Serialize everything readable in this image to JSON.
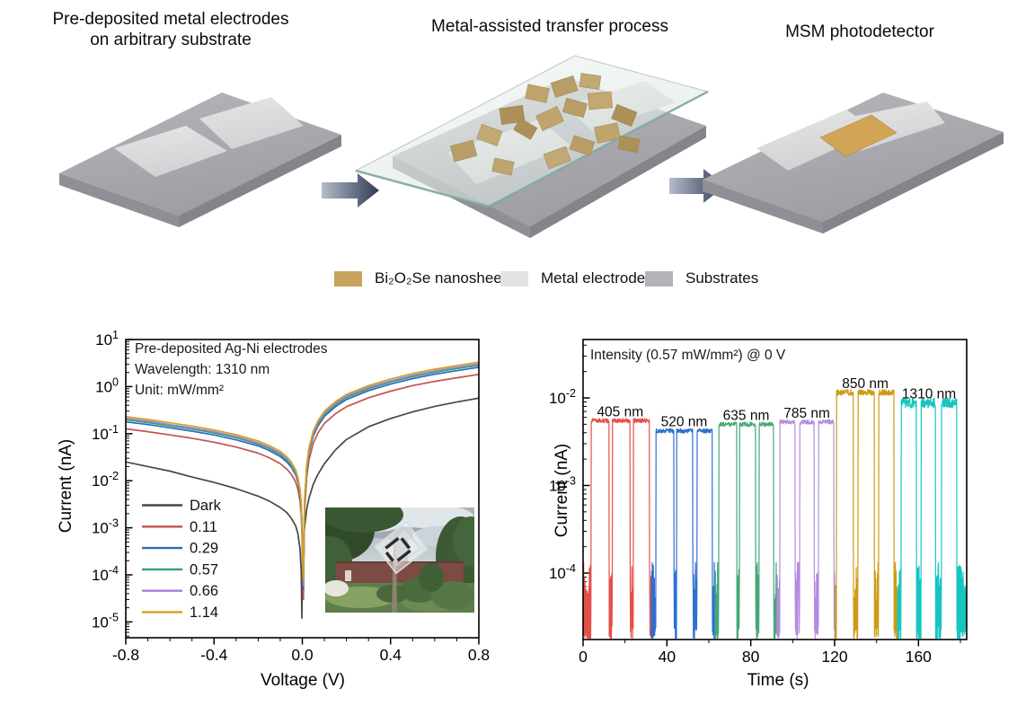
{
  "panels": [
    {
      "title": "Pre-deposited metal electrodes\non arbitrary substrate"
    },
    {
      "title": "Metal-assisted transfer process"
    },
    {
      "title": "MSM photodetector"
    }
  ],
  "materials_legend": {
    "items": [
      {
        "label": "Bi₂O₂Se nanosheets",
        "color": "#c8a35e"
      },
      {
        "label": "Metal electrodes",
        "color": "#e3e3e4"
      },
      {
        "label": "Substrates",
        "color": "#b2b2b7"
      }
    ]
  },
  "chart_data": [
    {
      "type": "line",
      "title": "",
      "xlabel": "Voltage (V)",
      "ylabel": "Current (nA)",
      "xlim": [
        -0.8,
        0.8
      ],
      "x_ticks": [
        -0.8,
        -0.4,
        0.0,
        0.4,
        0.8
      ],
      "y_ticks_log": [
        1,
        0,
        -1,
        -2,
        -3,
        -4,
        -5
      ],
      "ylim_log": [
        -5.34,
        1
      ],
      "grid": false,
      "yscale": "log",
      "legend_position": "inside lower-left",
      "annotation": "Pre-deposited Ag-Ni electrodes\nWavelength: 1310 nm\nUnit: mW/mm²",
      "series": [
        {
          "name": "Dark",
          "color": "#474747",
          "points": [
            [
              -0.8,
              0.025
            ],
            [
              -0.7,
              0.02
            ],
            [
              -0.6,
              0.016
            ],
            [
              -0.5,
              0.012
            ],
            [
              -0.4,
              0.0092
            ],
            [
              -0.3,
              0.0068
            ],
            [
              -0.2,
              0.0047
            ],
            [
              -0.15,
              0.0037
            ],
            [
              -0.1,
              0.0027
            ],
            [
              -0.07,
              0.0021
            ],
            [
              -0.05,
              0.0016
            ],
            [
              -0.03,
              0.0011
            ],
            [
              -0.02,
              0.00075
            ],
            [
              -0.01,
              0.00035
            ],
            [
              -0.005,
              0.00012
            ],
            [
              -0.002,
              1.2e-05
            ],
            [
              0,
              8e-05
            ],
            [
              0.002,
              0.00028
            ],
            [
              0.005,
              0.00055
            ],
            [
              0.01,
              0.001
            ],
            [
              0.02,
              0.0025
            ],
            [
              0.03,
              0.0042
            ],
            [
              0.05,
              0.0085
            ],
            [
              0.07,
              0.0135
            ],
            [
              0.1,
              0.023
            ],
            [
              0.15,
              0.045
            ],
            [
              0.2,
              0.075
            ],
            [
              0.3,
              0.14
            ],
            [
              0.4,
              0.21
            ],
            [
              0.5,
              0.29
            ],
            [
              0.6,
              0.38
            ],
            [
              0.7,
              0.47
            ],
            [
              0.8,
              0.57
            ]
          ]
        },
        {
          "name": "0.11",
          "color": "#c5534f",
          "points": [
            [
              -0.8,
              0.127
            ],
            [
              -0.7,
              0.11
            ],
            [
              -0.6,
              0.094
            ],
            [
              -0.5,
              0.08
            ],
            [
              -0.4,
              0.066
            ],
            [
              -0.3,
              0.052
            ],
            [
              -0.2,
              0.0385
            ],
            [
              -0.15,
              0.0308
            ],
            [
              -0.1,
              0.0231
            ],
            [
              -0.07,
              0.0176
            ],
            [
              -0.05,
              0.0138
            ],
            [
              -0.03,
              0.0094
            ],
            [
              -0.02,
              0.0066
            ],
            [
              -0.01,
              0.0036
            ],
            [
              -0.005,
              0.0019
            ],
            [
              -0.002,
              0.0008
            ],
            [
              0,
              0.00033
            ],
            [
              0.002,
              0.0001
            ],
            [
              0.005,
              3e-05
            ],
            [
              0.01,
              0.0022
            ],
            [
              0.02,
              0.012
            ],
            [
              0.03,
              0.0275
            ],
            [
              0.05,
              0.063
            ],
            [
              0.07,
              0.102
            ],
            [
              0.1,
              0.165
            ],
            [
              0.15,
              0.264
            ],
            [
              0.2,
              0.374
            ],
            [
              0.3,
              0.58
            ],
            [
              0.4,
              0.8
            ],
            [
              0.5,
              1.05
            ],
            [
              0.6,
              1.29
            ],
            [
              0.7,
              1.54
            ],
            [
              0.8,
              1.82
            ]
          ]
        },
        {
          "name": "0.29",
          "color": "#2b6cb8",
          "points": [
            [
              -0.8,
              0.179
            ],
            [
              -0.7,
              0.156
            ],
            [
              -0.6,
              0.133
            ],
            [
              -0.5,
              0.113
            ],
            [
              -0.4,
              0.094
            ],
            [
              -0.3,
              0.074
            ],
            [
              -0.2,
              0.055
            ],
            [
              -0.15,
              0.0437
            ],
            [
              -0.1,
              0.0328
            ],
            [
              -0.07,
              0.025
            ],
            [
              -0.05,
              0.0195
            ],
            [
              -0.03,
              0.0133
            ],
            [
              -0.02,
              0.0094
            ],
            [
              -0.01,
              0.0051
            ],
            [
              -0.005,
              0.0027
            ],
            [
              -0.002,
              0.0012
            ],
            [
              0,
              0.00047
            ],
            [
              0.002,
              0.00015
            ],
            [
              0.005,
              5e-05
            ],
            [
              0.01,
              0.0031
            ],
            [
              0.02,
              0.017
            ],
            [
              0.03,
              0.039
            ],
            [
              0.05,
              0.09
            ],
            [
              0.07,
              0.144
            ],
            [
              0.1,
              0.234
            ],
            [
              0.15,
              0.374
            ],
            [
              0.2,
              0.53
            ],
            [
              0.3,
              0.82
            ],
            [
              0.4,
              1.13
            ],
            [
              0.5,
              1.48
            ],
            [
              0.6,
              1.83
            ],
            [
              0.7,
              2.18
            ],
            [
              0.8,
              2.57
            ]
          ]
        },
        {
          "name": "0.57",
          "color": "#2da07a",
          "points": [
            [
              -0.8,
              0.198
            ],
            [
              -0.7,
              0.172
            ],
            [
              -0.6,
              0.146
            ],
            [
              -0.5,
              0.125
            ],
            [
              -0.4,
              0.103
            ],
            [
              -0.3,
              0.082
            ],
            [
              -0.2,
              0.06
            ],
            [
              -0.15,
              0.048
            ],
            [
              -0.1,
              0.036
            ],
            [
              -0.07,
              0.0275
            ],
            [
              -0.05,
              0.0215
            ],
            [
              -0.03,
              0.0146
            ],
            [
              -0.02,
              0.0103
            ],
            [
              -0.01,
              0.0056
            ],
            [
              -0.005,
              0.003
            ],
            [
              -0.002,
              0.0013
            ],
            [
              0,
              0.0005
            ],
            [
              0.002,
              0.00016
            ],
            [
              0.005,
              6e-05
            ],
            [
              0.01,
              0.0034
            ],
            [
              0.02,
              0.019
            ],
            [
              0.03,
              0.043
            ],
            [
              0.05,
              0.099
            ],
            [
              0.07,
              0.159
            ],
            [
              0.1,
              0.258
            ],
            [
              0.15,
              0.41
            ],
            [
              0.2,
              0.585
            ],
            [
              0.3,
              0.9
            ],
            [
              0.4,
              1.25
            ],
            [
              0.5,
              1.63
            ],
            [
              0.6,
              2.02
            ],
            [
              0.7,
              2.41
            ],
            [
              0.8,
              2.84
            ]
          ]
        },
        {
          "name": "0.66",
          "color": "#a781d4",
          "points": [
            [
              -0.8,
              0.212
            ],
            [
              -0.7,
              0.184
            ],
            [
              -0.6,
              0.156
            ],
            [
              -0.5,
              0.133
            ],
            [
              -0.4,
              0.11
            ],
            [
              -0.3,
              0.087
            ],
            [
              -0.2,
              0.064
            ],
            [
              -0.15,
              0.0515
            ],
            [
              -0.1,
              0.0386
            ],
            [
              -0.07,
              0.0294
            ],
            [
              -0.05,
              0.023
            ],
            [
              -0.03,
              0.0156
            ],
            [
              -0.02,
              0.011
            ],
            [
              -0.01,
              0.006
            ],
            [
              -0.005,
              0.0032
            ],
            [
              -0.002,
              0.0014
            ],
            [
              0,
              0.00055
            ],
            [
              0.002,
              0.00017
            ],
            [
              0.005,
              6e-05
            ],
            [
              0.01,
              0.0037
            ],
            [
              0.02,
              0.02
            ],
            [
              0.03,
              0.046
            ],
            [
              0.05,
              0.106
            ],
            [
              0.07,
              0.17
            ],
            [
              0.1,
              0.276
            ],
            [
              0.15,
              0.44
            ],
            [
              0.2,
              0.63
            ],
            [
              0.3,
              0.97
            ],
            [
              0.4,
              1.33
            ],
            [
              0.5,
              1.75
            ],
            [
              0.6,
              2.16
            ],
            [
              0.7,
              2.58
            ],
            [
              0.8,
              3.04
            ]
          ]
        },
        {
          "name": "1.14",
          "color": "#d2a321",
          "points": [
            [
              -0.8,
              0.23
            ],
            [
              -0.7,
              0.2
            ],
            [
              -0.6,
              0.17
            ],
            [
              -0.5,
              0.145
            ],
            [
              -0.4,
              0.12
            ],
            [
              -0.3,
              0.095
            ],
            [
              -0.2,
              0.07
            ],
            [
              -0.15,
              0.056
            ],
            [
              -0.1,
              0.042
            ],
            [
              -0.07,
              0.032
            ],
            [
              -0.05,
              0.025
            ],
            [
              -0.03,
              0.017
            ],
            [
              -0.02,
              0.012
            ],
            [
              -0.01,
              0.0065
            ],
            [
              -0.005,
              0.0035
            ],
            [
              -0.002,
              0.0015
            ],
            [
              0,
              0.0006
            ],
            [
              0.002,
              0.00019
            ],
            [
              0.005,
              8e-05
            ],
            [
              0.01,
              0.004
            ],
            [
              0.02,
              0.022
            ],
            [
              0.03,
              0.05
            ],
            [
              0.05,
              0.115
            ],
            [
              0.07,
              0.185
            ],
            [
              0.1,
              0.3
            ],
            [
              0.15,
              0.48
            ],
            [
              0.2,
              0.68
            ],
            [
              0.3,
              1.05
            ],
            [
              0.4,
              1.45
            ],
            [
              0.5,
              1.9
            ],
            [
              0.6,
              2.35
            ],
            [
              0.7,
              2.8
            ],
            [
              0.8,
              3.3
            ]
          ]
        }
      ]
    },
    {
      "type": "line",
      "title": "",
      "xlabel": "Time (s)",
      "ylabel": "Current (nA)",
      "xlim": [
        0,
        183
      ],
      "x_ticks": [
        0,
        40,
        80,
        120,
        160
      ],
      "x_minor_ticks": [
        20,
        60,
        100,
        140,
        180
      ],
      "y_ticks_log": [
        -2,
        -3,
        -4
      ],
      "ylim_log": [
        -4.76,
        -1.33
      ],
      "grid": false,
      "yscale": "log",
      "annotation": "Intensity (0.57 mW/mm²) @ 0 V",
      "baseline_current_nA": 0.0001,
      "series": [
        {
          "name": "405 nm",
          "color": "#e3504a",
          "on_current_nA": 0.0055,
          "window": [
            0,
            32.6
          ],
          "pulses": [
            [
              3.8,
              12.4
            ],
            [
              14.0,
              22.4
            ],
            [
              24.0,
              31.6
            ]
          ],
          "top_noise": 0.05
        },
        {
          "name": "520 nm",
          "color": "#2f6fd0",
          "on_current_nA": 0.0042,
          "window": [
            32.6,
            63.0
          ],
          "pulses": [
            [
              34.7,
              43.3
            ],
            [
              44.6,
              52.3
            ],
            [
              54.4,
              61.7
            ]
          ],
          "top_noise": 0.05
        },
        {
          "name": "635 nm",
          "color": "#44a878",
          "on_current_nA": 0.005,
          "window": [
            63.0,
            92.5
          ],
          "pulses": [
            [
              64.7,
              73.3
            ],
            [
              74.6,
              82.3
            ],
            [
              84.0,
              90.9
            ]
          ],
          "top_noise": 0.05
        },
        {
          "name": "785 nm",
          "color": "#b48be0",
          "on_current_nA": 0.0053,
          "window": [
            92.5,
            120.3
          ],
          "pulses": [
            [
              93.9,
              101.2
            ],
            [
              103.3,
              110.2
            ],
            [
              112.3,
              119.6
            ]
          ],
          "top_noise": 0.05
        },
        {
          "name": "850 nm",
          "color": "#cd9b13",
          "on_current_nA": 0.0115,
          "window": [
            120.3,
            150.0
          ],
          "pulses": [
            [
              120.9,
              129.0
            ],
            [
              131.2,
              138.9
            ],
            [
              141.0,
              148.3
            ]
          ],
          "top_noise": 0.07
        },
        {
          "name": "1310 nm",
          "color": "#17c5c0",
          "on_current_nA": 0.0088,
          "window": [
            150.0,
            183.0
          ],
          "pulses": [
            [
              151.7,
              159.0
            ],
            [
              161.2,
              168.1
            ],
            [
              171.0,
              178.3
            ]
          ],
          "top_noise": 0.12
        }
      ]
    }
  ]
}
